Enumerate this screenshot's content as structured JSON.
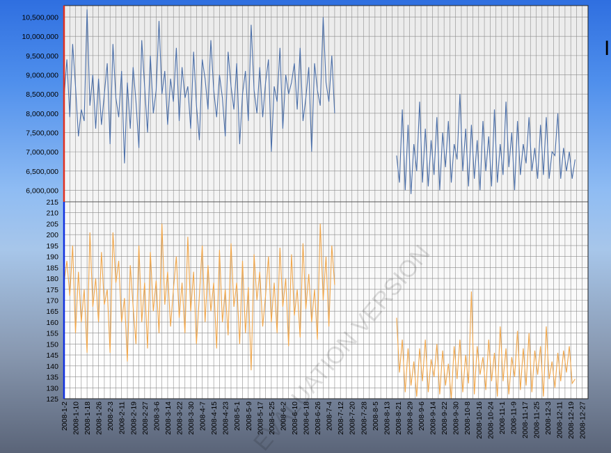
{
  "chart_data": [
    {
      "type": "line",
      "title": "",
      "xlabel": "",
      "ylabel": "",
      "ylim": [
        5700000,
        10800000
      ],
      "y_ticks": [
        6000000,
        6500000,
        7000000,
        7500000,
        8000000,
        8500000,
        9000000,
        9500000,
        10000000,
        10500000
      ],
      "y_tick_labels": [
        "6,000,000",
        "6,500,000",
        "7,000,000",
        "7,500,000",
        "8,000,000",
        "8,500,000",
        "9,000,000",
        "9,500,000",
        "10,000,000",
        "10,500,000"
      ],
      "grid": true,
      "series": [
        {
          "color": "#4a6ea8",
          "x_range": [
            "2008-01-02",
            "2008-12-31"
          ],
          "sample_every_days": 2,
          "values": [
            8400000,
            9400000,
            7900000,
            9800000,
            8700000,
            7400000,
            8100000,
            7800000,
            10700000,
            8200000,
            9000000,
            7600000,
            8900000,
            7700000,
            8500000,
            9300000,
            7200000,
            9800000,
            8400000,
            7900000,
            9100000,
            6700000,
            8800000,
            7600000,
            9200000,
            8300000,
            7100000,
            9900000,
            8700000,
            7500000,
            9500000,
            8000000,
            8600000,
            10400000,
            8500000,
            9100000,
            7700000,
            8900000,
            8300000,
            9700000,
            7800000,
            9200000,
            8400000,
            8700000,
            7600000,
            9600000,
            8200000,
            7300000,
            9400000,
            8900000,
            8100000,
            9900000,
            8600000,
            7900000,
            9000000,
            8400000,
            7400000,
            9600000,
            8700000,
            8100000,
            9300000,
            7200000,
            8500000,
            9100000,
            7800000,
            10300000,
            8600000,
            8000000,
            9200000,
            7900000,
            8800000,
            9400000,
            7000000,
            8700000,
            8300000,
            9700000,
            7600000,
            9000000,
            8500000,
            8800000,
            9300000,
            8100000,
            9700000,
            7800000,
            8400000,
            9200000,
            7000000,
            9300000,
            8600000,
            8200000,
            10500000,
            8800000,
            8300000,
            9500000,
            8000000
          ],
          "note_values_shown_in_axis_units": true
        },
        {
          "color": "#4a6ea8",
          "x_range": [
            "2008-08-20",
            "2008-12-31"
          ],
          "sample_every_days": 2,
          "values": [
            6900000,
            6200000,
            8100000,
            6000000,
            7700000,
            5900000,
            7200000,
            6500000,
            8300000,
            6200000,
            7600000,
            6100000,
            7300000,
            6400000,
            7900000,
            6000000,
            7500000,
            6600000,
            7800000,
            6200000,
            7200000,
            6800000,
            8500000,
            6500000,
            7600000,
            6100000,
            7700000,
            6300000,
            7300000,
            6000000,
            7800000,
            6500000,
            7400000,
            6100000,
            8100000,
            6200000,
            7200000,
            6400000,
            8300000,
            6600000,
            7500000,
            6000000,
            7800000,
            6400000,
            7200000,
            6700000,
            7900000,
            6500000,
            7100000,
            6300000,
            7700000,
            6400000,
            7900000,
            6300000,
            7000000,
            6900000,
            8000000,
            6300000,
            7100000,
            6500000,
            7000000,
            6300000,
            6800000
          ]
        }
      ]
    },
    {
      "type": "line",
      "title": "",
      "xlabel": "",
      "ylabel": "",
      "ylim": [
        125,
        215
      ],
      "y_ticks": [
        125,
        130,
        135,
        140,
        145,
        150,
        155,
        160,
        165,
        170,
        175,
        180,
        185,
        190,
        195,
        200,
        205,
        210,
        215
      ],
      "grid": true,
      "series": [
        {
          "color": "#f0a64a",
          "x_range": [
            "2008-01-02",
            "2008-12-31"
          ],
          "sample_every_days": 2,
          "values": [
            178,
            188,
            172,
            195,
            155,
            183,
            160,
            175,
            146,
            201,
            167,
            180,
            160,
            192,
            168,
            175,
            146,
            201,
            178,
            188,
            160,
            171,
            142,
            186,
            167,
            150,
            195,
            160,
            178,
            148,
            192,
            165,
            179,
            155,
            205,
            168,
            183,
            158,
            175,
            190,
            162,
            178,
            155,
            199,
            165,
            183,
            150,
            172,
            195,
            160,
            186,
            165,
            178,
            148,
            193,
            160,
            175,
            154,
            196,
            167,
            178,
            150,
            188,
            155,
            176,
            138,
            191,
            170,
            183,
            158,
            172,
            190,
            160,
            178,
            155,
            194,
            167,
            180,
            149,
            191,
            163,
            175,
            153,
            196,
            166,
            182,
            160,
            175,
            152,
            205,
            170,
            190,
            158,
            195,
            177
          ]
        },
        {
          "color": "#f0a64a",
          "x_range": [
            "2008-08-20",
            "2008-12-31"
          ],
          "sample_every_days": 2,
          "values": [
            162,
            137,
            152,
            128,
            148,
            131,
            142,
            126,
            148,
            133,
            152,
            128,
            143,
            135,
            150,
            127,
            147,
            131,
            141,
            125,
            149,
            134,
            152,
            128,
            145,
            132,
            174,
            127,
            149,
            136,
            144,
            129,
            152,
            133,
            146,
            126,
            158,
            133,
            148,
            127,
            144,
            135,
            156,
            129,
            148,
            131,
            155,
            128,
            147,
            136,
            149,
            126,
            158,
            134,
            142,
            130,
            146,
            133,
            147,
            137,
            149,
            132,
            134
          ]
        }
      ]
    }
  ],
  "x_axis": {
    "type": "date",
    "range": [
      "2008-01-02",
      "2008-12-31"
    ],
    "tick_labels": [
      "2008-1-2",
      "2008-1-10",
      "2008-1-18",
      "2008-1-26",
      "2008-2-3",
      "2008-2-11",
      "2008-2-19",
      "2008-2-27",
      "2008-3-6",
      "2008-3-14",
      "2008-3-22",
      "2008-3-30",
      "2008-4-7",
      "2008-4-15",
      "2008-4-23",
      "2008-5-1",
      "2008-5-9",
      "2008-5-17",
      "2008-5-25",
      "2008-6-2",
      "2008-6-10",
      "2008-6-18",
      "2008-6-26",
      "2008-7-4",
      "2008-7-12",
      "2008-7-20",
      "2008-7-28",
      "2008-8-5",
      "2008-8-13",
      "2008-8-21",
      "2008-8-29",
      "2008-9-6",
      "2008-9-14",
      "2008-9-22",
      "2008-9-30",
      "2008-10-8",
      "2008-10-16",
      "2008-10-24",
      "2008-11-1",
      "2008-11-9",
      "2008-11-17",
      "2008-11-25",
      "2008-12-3",
      "2008-12-11",
      "2008-12-19",
      "2008-12-27"
    ]
  },
  "watermark": "EVALUATION VERSION",
  "edge_text": "I",
  "colors": {
    "plot_bg_top": "#ebebeb",
    "plot_bg_bottom": "#ffffff",
    "grid": "#8c8c8c",
    "upper_axis": "#e03020",
    "lower_axis": "#1030e0"
  }
}
